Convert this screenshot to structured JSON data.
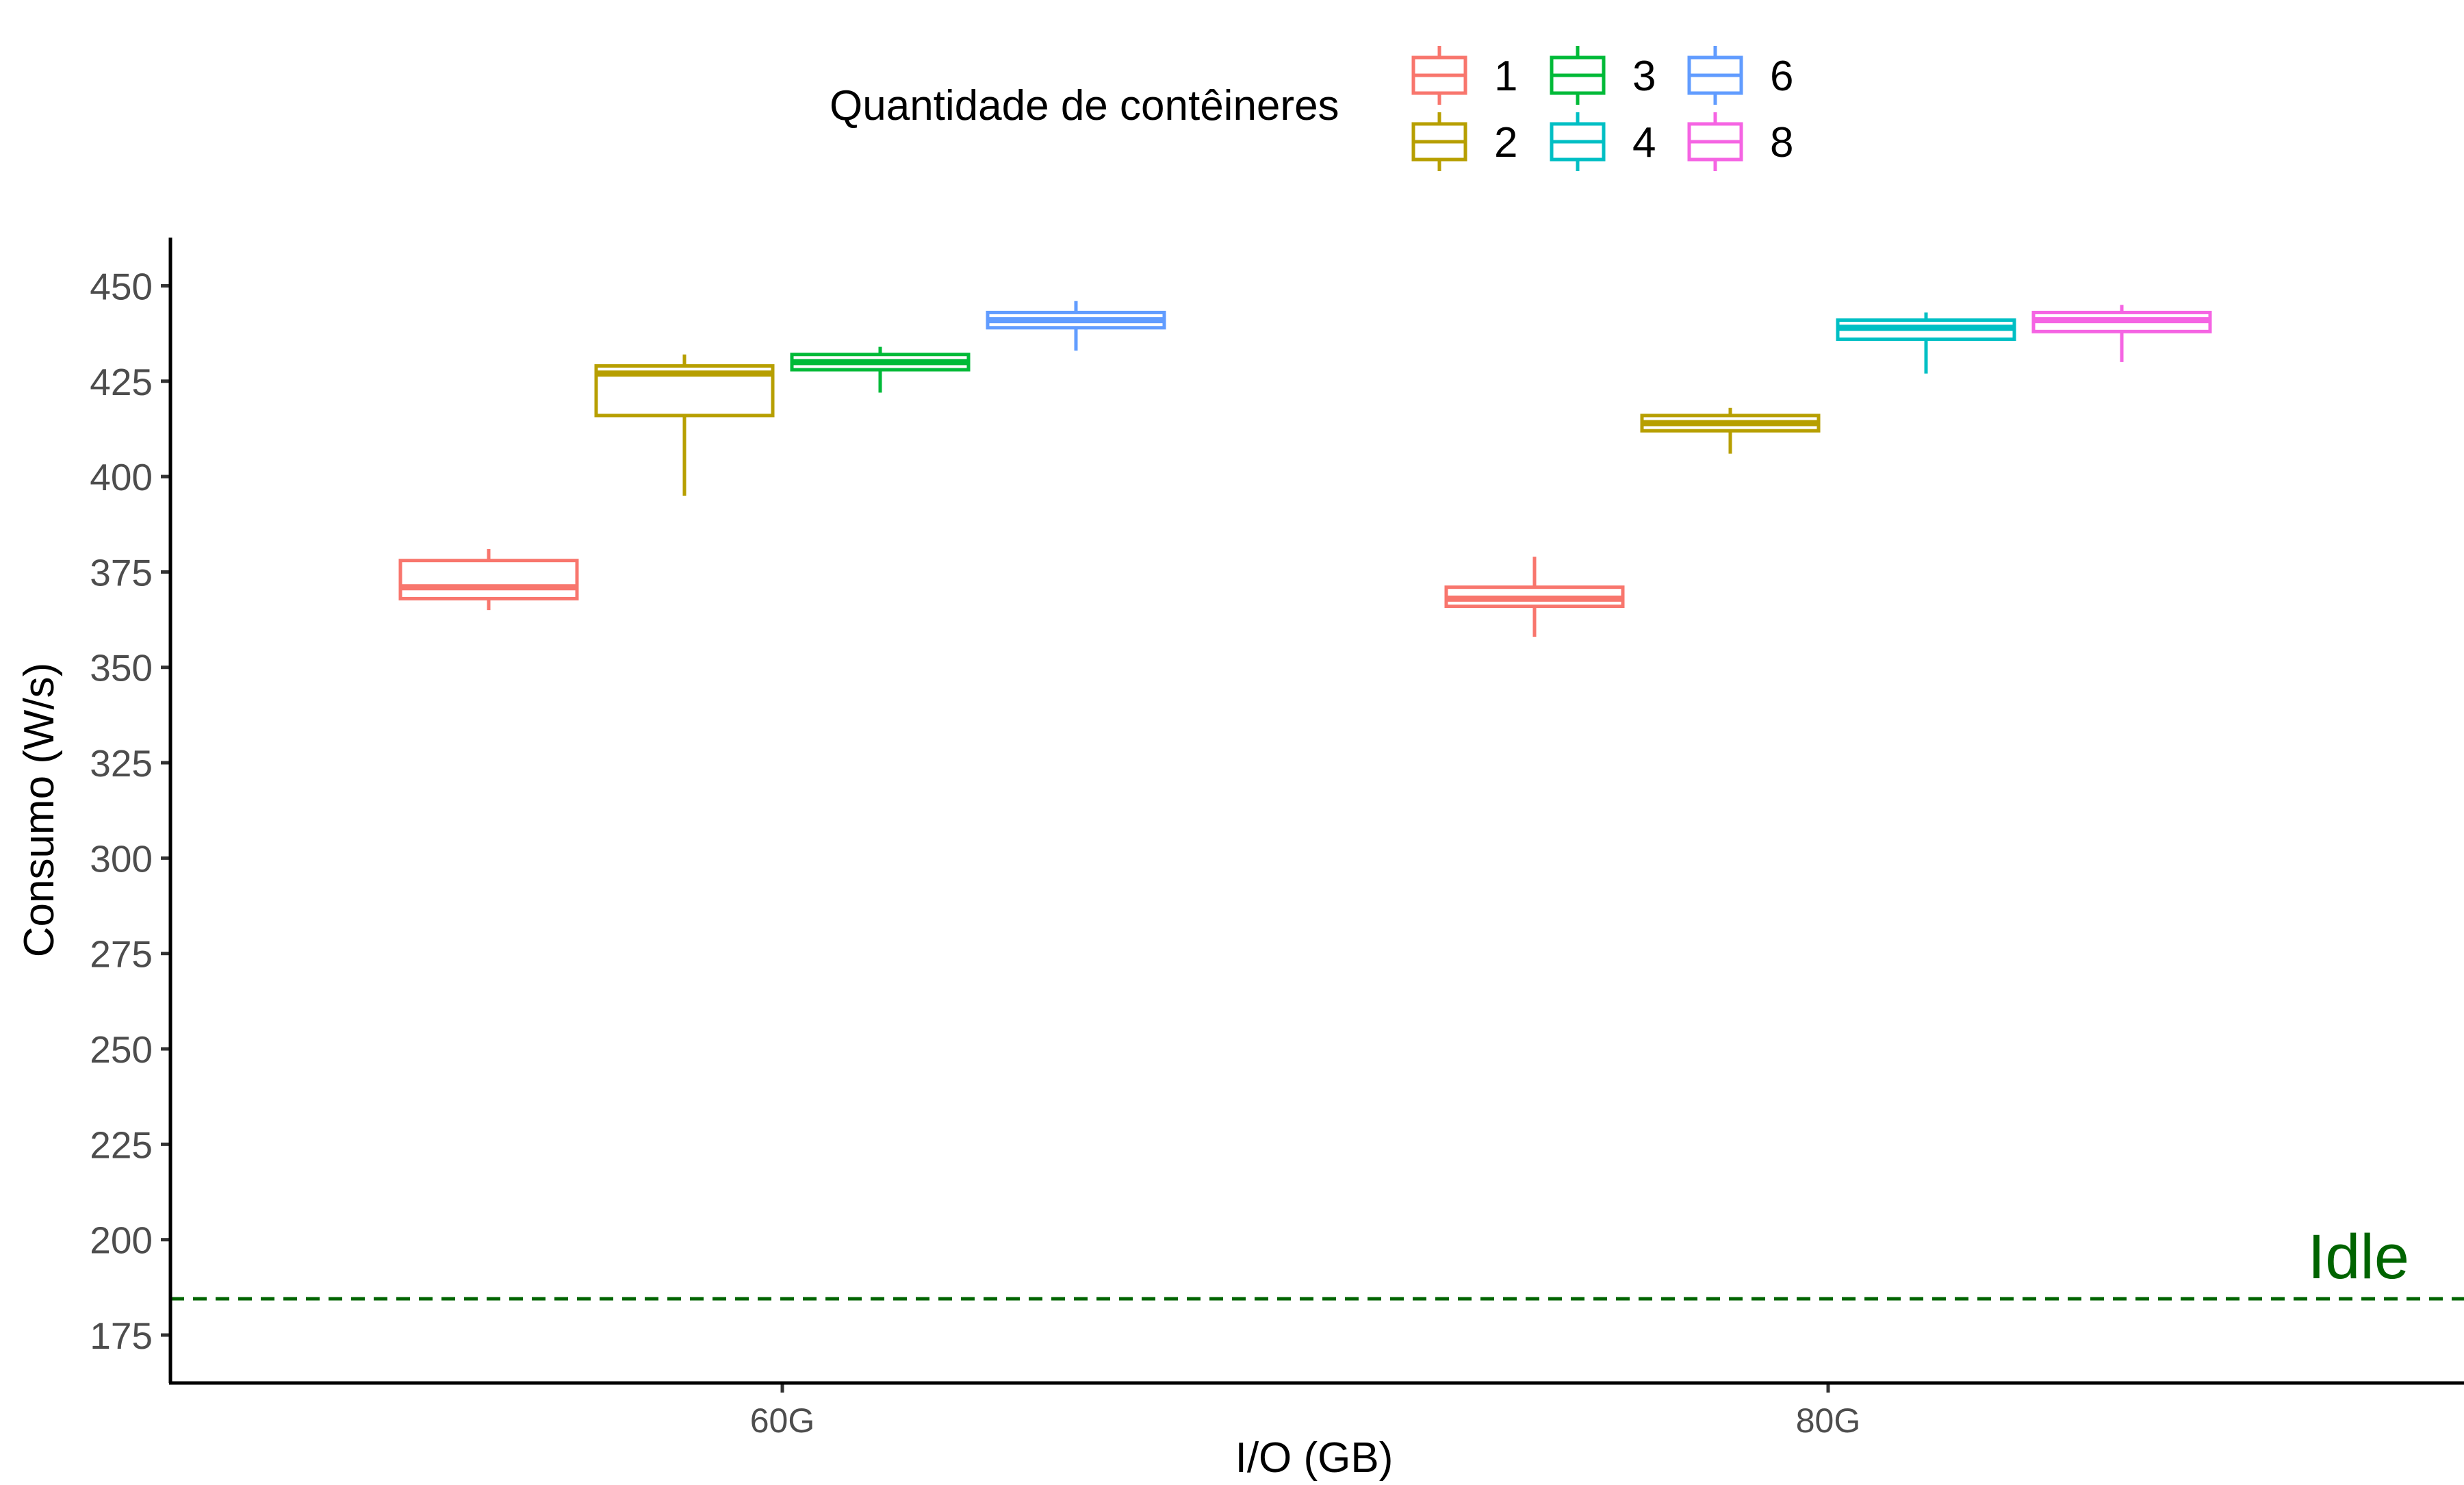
{
  "chart_data": {
    "type": "boxplot",
    "xlabel": "I/O (GB)",
    "ylabel": "Consumo (W/s)",
    "categories": [
      "60G",
      "80G"
    ],
    "ylim": [
      160,
      463
    ],
    "yticks": [
      175,
      200,
      225,
      250,
      275,
      300,
      325,
      350,
      375,
      400,
      425,
      450
    ],
    "grid": false,
    "legend": {
      "title": "Quantidade de contêineres",
      "position": "top",
      "entries": [
        "1",
        "2",
        "3",
        "4",
        "6",
        "8"
      ]
    },
    "series": [
      {
        "name": "1",
        "color": "#F8766D",
        "boxes": [
          {
            "category": "60G",
            "min": 365,
            "q1": 368,
            "median": 371,
            "q3": 378,
            "max": 381
          },
          {
            "category": "80G",
            "min": 358,
            "q1": 366,
            "median": 368,
            "q3": 371,
            "max": 379
          }
        ]
      },
      {
        "name": "2",
        "color": "#B79F00",
        "boxes": [
          {
            "category": "60G",
            "min": 395,
            "q1": 416,
            "median": 427,
            "q3": 429,
            "max": 432
          },
          {
            "category": "80G",
            "min": 406,
            "q1": 412,
            "median": 414,
            "q3": 416,
            "max": 418
          }
        ]
      },
      {
        "name": "3",
        "color": "#00BA38",
        "boxes": [
          {
            "category": "60G",
            "min": 422,
            "q1": 428,
            "median": 430,
            "q3": 432,
            "max": 434
          }
        ]
      },
      {
        "name": "4",
        "color": "#00BFC4",
        "boxes": [
          {
            "category": "80G",
            "min": 427,
            "q1": 436,
            "median": 439,
            "q3": 441,
            "max": 443
          }
        ]
      },
      {
        "name": "6",
        "color": "#619CFF",
        "boxes": [
          {
            "category": "60G",
            "min": 433,
            "q1": 439,
            "median": 441,
            "q3": 443,
            "max": 446
          }
        ]
      },
      {
        "name": "8",
        "color": "#F564E3",
        "boxes": [
          {
            "category": "80G",
            "min": 430,
            "q1": 438,
            "median": 441,
            "q3": 443,
            "max": 445
          }
        ]
      }
    ],
    "reference_line": {
      "label": "Idle",
      "y": 184.5,
      "color": "#006400",
      "style": "dashed"
    }
  }
}
